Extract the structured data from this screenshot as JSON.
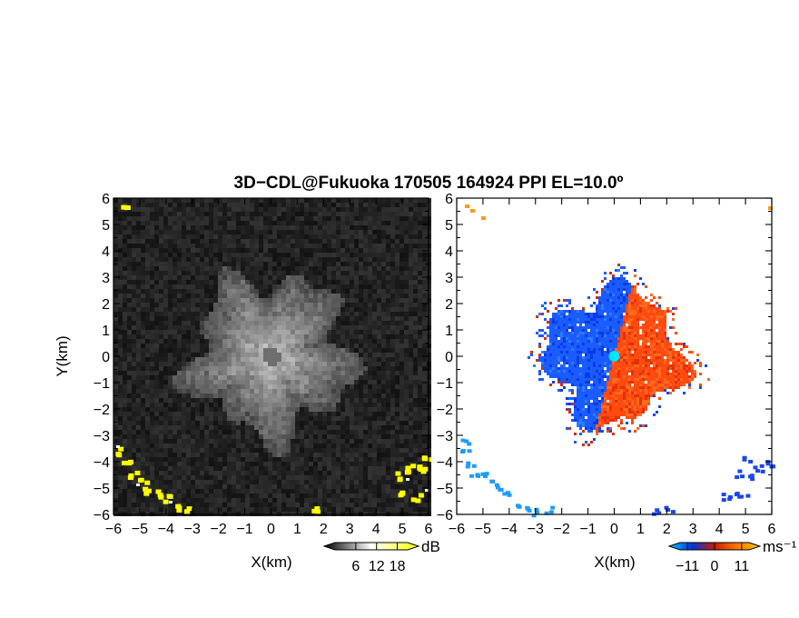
{
  "title": "3D−CDL@Fukuoka 170505 164924 PPI EL=10.0º",
  "chart_data": [
    {
      "type": "heatmap",
      "panel": "reflectivity",
      "xlabel": "X(km)",
      "ylabel": "Y(km)",
      "xlim": [
        -6,
        6
      ],
      "ylim": [
        -6,
        6
      ],
      "x_ticks": [
        "−6",
        "−5",
        "−4",
        "−3",
        "−2",
        "−1",
        "0",
        "1",
        "2",
        "3",
        "4",
        "5",
        "6"
      ],
      "y_ticks": [
        "6",
        "5",
        "4",
        "3",
        "2",
        "1",
        "0",
        "−1",
        "−2",
        "−3",
        "−4",
        "−5",
        "−6"
      ],
      "colorbar": {
        "label": "dB",
        "ticks": [
          "6",
          "12",
          "18"
        ],
        "range": [
          0,
          21
        ],
        "colors": [
          "#000000",
          "#ffffff",
          "#ffff00"
        ]
      },
      "features": [
        {
          "name": "central echo",
          "center_km": [
            0,
            0
          ],
          "radius_km": 3.3
        },
        {
          "name": "clutter",
          "side": "lower-left",
          "color": "#ffff00"
        },
        {
          "name": "clutter",
          "side": "lower-right",
          "color": "#ffff00"
        }
      ]
    },
    {
      "type": "heatmap",
      "panel": "radial velocity",
      "xlabel": "X(km)",
      "xlim": [
        -6,
        6
      ],
      "ylim": [
        -6,
        6
      ],
      "x_ticks": [
        "−6",
        "−5",
        "−4",
        "−3",
        "−2",
        "−1",
        "0",
        "1",
        "2",
        "3",
        "4",
        "5",
        "6"
      ],
      "y_ticks": [
        "6",
        "5",
        "4",
        "3",
        "2",
        "1",
        "0",
        "−1",
        "−2",
        "−3",
        "−4",
        "−5",
        "−6"
      ],
      "colorbar": {
        "label": "ms⁻¹",
        "ticks": [
          "−11",
          "0",
          "11"
        ],
        "range": [
          -14,
          14
        ],
        "colors": [
          "#00c8ff",
          "#0032dc",
          "#c81e00",
          "#ff7800",
          "#ffc800"
        ]
      },
      "features": [
        {
          "name": "approaching",
          "side": "west",
          "color": "#1a5cff"
        },
        {
          "name": "receding",
          "side": "east",
          "color": "#ff4a10"
        },
        {
          "name": "radar site",
          "center_km": [
            0,
            0
          ],
          "color": "#00e5ff"
        }
      ]
    }
  ]
}
